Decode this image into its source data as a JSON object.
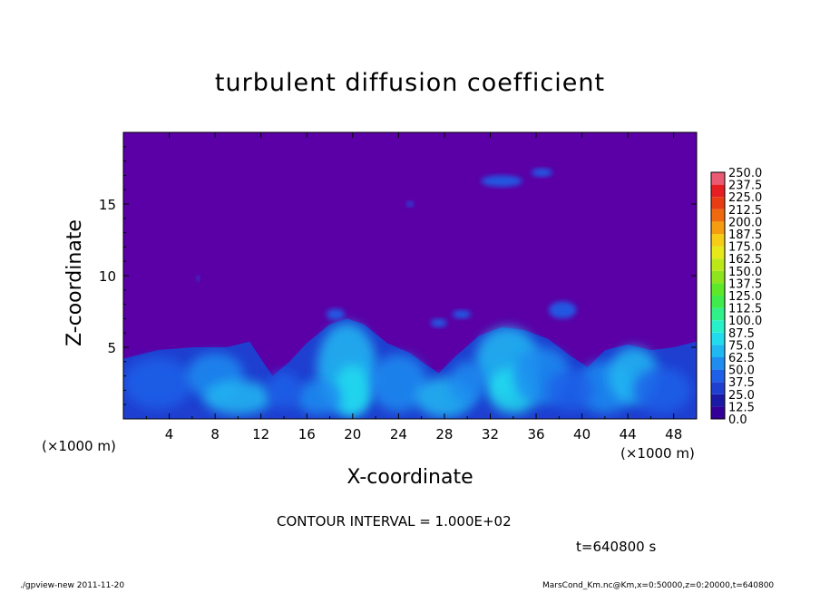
{
  "chart_data": {
    "type": "heatmap",
    "title": "turbulent diffusion coefficient",
    "xlabel": "X-coordinate",
    "ylabel": "Z-coordinate",
    "x_unit": "(×1000 m)",
    "x_unit_right": "(×1000 m)",
    "xlim": [
      0,
      50
    ],
    "ylim": [
      0,
      20
    ],
    "x_ticks": [
      4,
      8,
      12,
      16,
      20,
      24,
      28,
      32,
      36,
      40,
      44,
      48
    ],
    "y_ticks": [
      5,
      10,
      15
    ],
    "colorbar": {
      "levels": [
        "0.0",
        "12.5",
        "25.0",
        "37.5",
        "50.0",
        "62.5",
        "75.0",
        "87.5",
        "100.0",
        "112.5",
        "125.0",
        "137.5",
        "150.0",
        "162.5",
        "175.0",
        "187.5",
        "200.0",
        "212.5",
        "225.0",
        "237.5",
        "250.0"
      ],
      "colors": [
        "#330099",
        "#1a1aa6",
        "#1f3fd0",
        "#1e60e8",
        "#1f8cf0",
        "#20b8f2",
        "#22dcee",
        "#28f0c8",
        "#30f08a",
        "#40ec4c",
        "#5ee82a",
        "#8ee41e",
        "#bde818",
        "#e6e81a",
        "#f5cc16",
        "#f59c10",
        "#ef6a0e",
        "#e83c14",
        "#e61e24",
        "#ea5a72"
      ]
    },
    "contour_interval": "CONTOUR INTERVAL = 1.000E+02",
    "time": "t=640800 s",
    "background_color": "#5a00a6"
  },
  "footer": {
    "left": "./gpview-new  2011-11-20",
    "right": "MarsCond_Km.nc@Km,x=0:50000,z=0:20000,t=640800"
  }
}
